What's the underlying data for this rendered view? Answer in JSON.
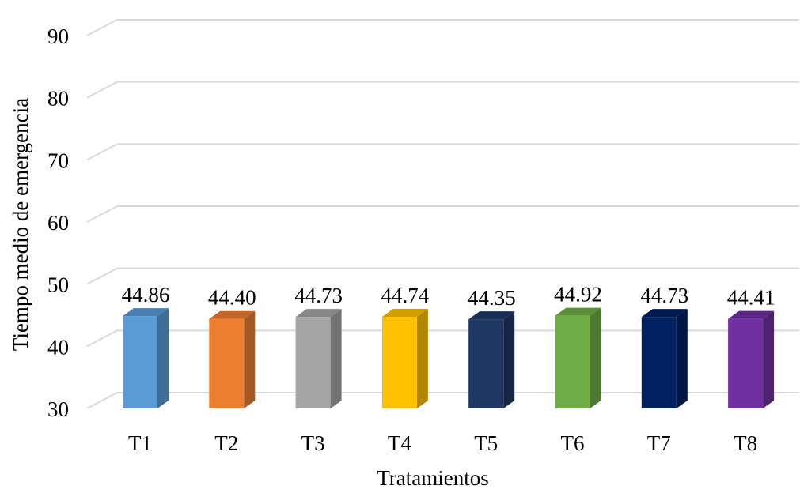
{
  "chart_data": {
    "type": "bar",
    "style": "3d-column",
    "title": "",
    "xlabel": "Tratamientos",
    "ylabel": "Tiempo medio de emergencia",
    "ylim": [
      30,
      90
    ],
    "yticks": [
      30,
      40,
      50,
      60,
      70,
      80,
      90
    ],
    "grid": true,
    "legend": "none",
    "categories": [
      "T1",
      "T2",
      "T3",
      "T4",
      "T5",
      "T6",
      "T7",
      "T8"
    ],
    "values": [
      44.86,
      44.4,
      44.73,
      44.74,
      44.35,
      44.92,
      44.73,
      44.41
    ],
    "value_labels": [
      "44.86",
      "44.40",
      "44.73",
      "44.74",
      "44.35",
      "44.92",
      "44.73",
      "44.41"
    ],
    "colors": [
      "#5b9bd5",
      "#ed7d31",
      "#a5a5a5",
      "#ffc000",
      "#1f3864",
      "#70ad47",
      "#002060",
      "#7030a0"
    ]
  }
}
